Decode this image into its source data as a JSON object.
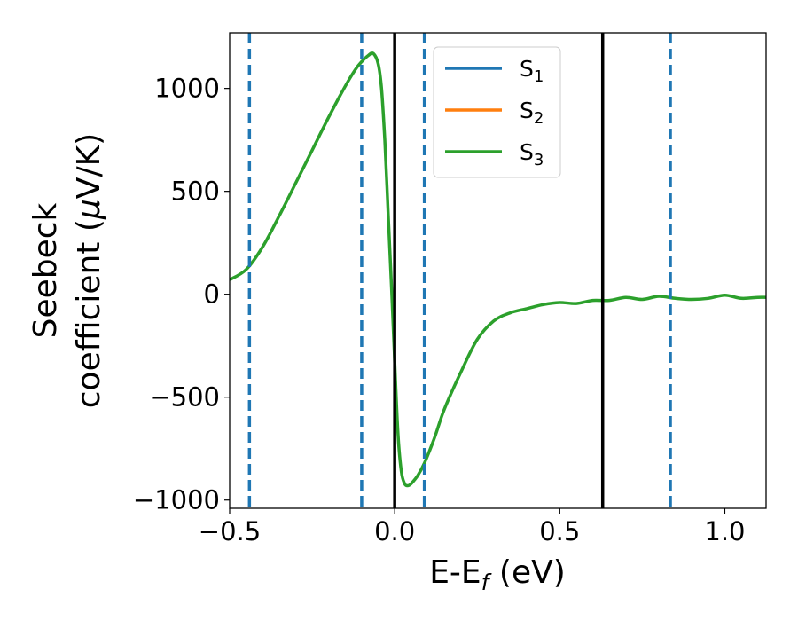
{
  "chart_data": {
    "type": "line",
    "xlabel": "E-E",
    "xlabel_sub": "f",
    "xlabel_unit": " (eV)",
    "ylabel_line1": "Seebeck",
    "ylabel_line2_pre": "coefficient  (",
    "ylabel_mu": "μ",
    "ylabel_line2_post": "V/K)",
    "xlim": [
      -0.5,
      1.125
    ],
    "ylim": [
      -1040,
      1270
    ],
    "x_ticks": [
      {
        "value": -0.5,
        "label": "−0.5"
      },
      {
        "value": 0.0,
        "label": "0.0"
      },
      {
        "value": 0.5,
        "label": "0.5"
      },
      {
        "value": 1.0,
        "label": "1.0"
      }
    ],
    "y_ticks": [
      {
        "value": -1000,
        "label": "−1000"
      },
      {
        "value": -500,
        "label": "−500"
      },
      {
        "value": 0,
        "label": "0"
      },
      {
        "value": 500,
        "label": "500"
      },
      {
        "value": 1000,
        "label": "1000"
      }
    ],
    "grid": false,
    "legend_position": "top-center",
    "series": [
      {
        "name": "S",
        "sub": "1",
        "color": "#1f77b4"
      },
      {
        "name": "S",
        "sub": "2",
        "color": "#ff7f0e"
      },
      {
        "name": "S",
        "sub": "3",
        "color": "#2ca02c"
      }
    ],
    "curve": {
      "color": "#2ca02c",
      "x": [
        -0.5,
        -0.45,
        -0.4,
        -0.35,
        -0.3,
        -0.25,
        -0.2,
        -0.15,
        -0.12,
        -0.1,
        -0.08,
        -0.065,
        -0.05,
        -0.04,
        -0.03,
        -0.02,
        -0.01,
        0.0,
        0.01,
        0.02,
        0.03,
        0.04,
        0.05,
        0.07,
        0.09,
        0.12,
        0.15,
        0.2,
        0.25,
        0.3,
        0.35,
        0.4,
        0.45,
        0.5,
        0.55,
        0.6,
        0.65,
        0.7,
        0.75,
        0.8,
        0.85,
        0.9,
        0.95,
        1.0,
        1.05,
        1.1,
        1.125
      ],
      "y": [
        70,
        120,
        230,
        380,
        540,
        700,
        860,
        1010,
        1090,
        1130,
        1160,
        1170,
        1120,
        1000,
        750,
        400,
        50,
        -330,
        -680,
        -860,
        -920,
        -930,
        -920,
        -880,
        -820,
        -700,
        -560,
        -380,
        -220,
        -130,
        -90,
        -70,
        -50,
        -40,
        -45,
        -30,
        -30,
        -15,
        -25,
        -10,
        -20,
        -25,
        -20,
        -5,
        -20,
        -15,
        -15
      ]
    },
    "vlines_solid": {
      "color": "#000000",
      "x": [
        0.0,
        0.63
      ]
    },
    "vlines_dashed": {
      "color": "#1f77b4",
      "x": [
        -0.44,
        -0.1,
        0.09,
        0.835
      ]
    }
  }
}
